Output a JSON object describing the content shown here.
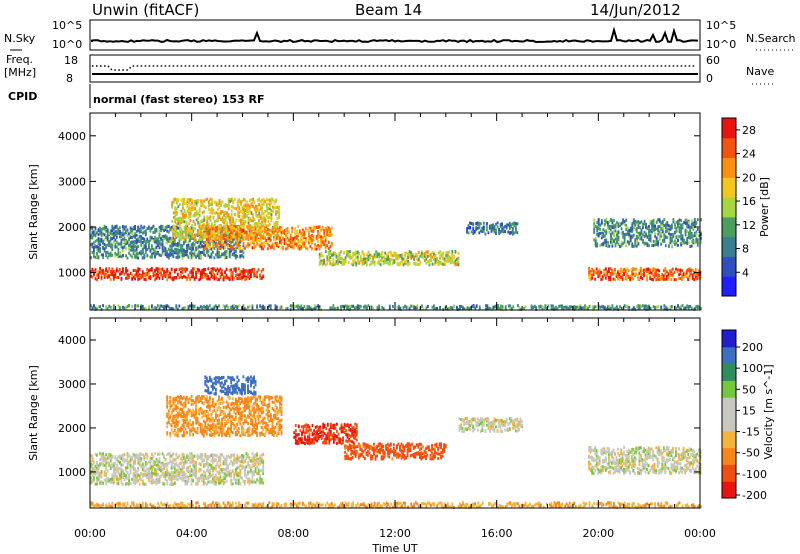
{
  "header": {
    "station": "Unwin (fitACF)",
    "beam": "Beam 14",
    "date": "14/Jun/2012"
  },
  "top_panels": {
    "nsky_label": "N.Sky",
    "nsky_ticks": [
      "10^5",
      "10^0"
    ],
    "nsearch_label": "N.Search",
    "nsearch_ticks": [
      "10^5",
      "10^0"
    ],
    "freq_label_1": "Freq.",
    "freq_label_2": "[MHz]",
    "freq_ticks": [
      "18",
      "8"
    ],
    "nave_label": "Nave",
    "nave_ticks": [
      "60",
      "0"
    ],
    "cpid_label": "CPID",
    "cpid_text": "normal (fast stereo) 153 RF"
  },
  "colors": {
    "power_scale": [
      "#1f1fff",
      "#2f4fbf",
      "#3a7f8f",
      "#4a9f5f",
      "#a6d640",
      "#f2c81e",
      "#fa9010",
      "#f25410",
      "#e81410"
    ],
    "velocity_scale": [
      "#e81410",
      "#f24e12",
      "#f7861a",
      "#f5b43c",
      "#c8c8c0",
      "#c8c8c0",
      "#74c83c",
      "#2f8f5a",
      "#3f6fbf",
      "#1f1fcf"
    ]
  },
  "chart_data": [
    {
      "type": "heatmap",
      "name": "Power",
      "ylabel": "Slant Range [km]",
      "xlabel": "Time UT",
      "xlim": [
        "00:00",
        "24:00"
      ],
      "ylim": [
        180,
        4500
      ],
      "xticks": [
        "00:00",
        "04:00",
        "08:00",
        "12:00",
        "16:00",
        "20:00",
        "00:00"
      ],
      "yticks": [
        1000,
        2000,
        3000,
        4000
      ],
      "colorbar_label": "Power [dB]",
      "colorbar_range": [
        0,
        30
      ],
      "colorbar_ticks": [
        4,
        8,
        12,
        16,
        20,
        24,
        28
      ],
      "bands": [
        {
          "t_start": 0.0,
          "t_end": 6.8,
          "r_center": 1000,
          "r_width": 250,
          "value": 27
        },
        {
          "t_start": 0.0,
          "t_end": 6.0,
          "r_center": 1700,
          "r_width": 700,
          "value": 9
        },
        {
          "t_start": 3.2,
          "t_end": 7.4,
          "r_center": 2200,
          "r_width": 900,
          "value": 18
        },
        {
          "t_start": 4.5,
          "t_end": 9.5,
          "r_center": 1800,
          "r_width": 500,
          "value": 22
        },
        {
          "t_start": 9.0,
          "t_end": 14.5,
          "r_center": 1350,
          "r_width": 300,
          "value": 16
        },
        {
          "t_start": 14.8,
          "t_end": 16.8,
          "r_center": 2000,
          "r_width": 250,
          "value": 8
        },
        {
          "t_start": 19.6,
          "t_end": 24.0,
          "r_center": 1000,
          "r_width": 250,
          "value": 24
        },
        {
          "t_start": 19.8,
          "t_end": 24.0,
          "r_center": 1900,
          "r_width": 600,
          "value": 10
        },
        {
          "t_start": 0.0,
          "t_end": 24.0,
          "r_center": 250,
          "r_width": 120,
          "value": 10
        }
      ]
    },
    {
      "type": "heatmap",
      "name": "Velocity",
      "ylabel": "Slant Range [km]",
      "xlabel": "Time UT",
      "xlim": [
        "00:00",
        "24:00"
      ],
      "ylim": [
        180,
        4500
      ],
      "xticks": [
        "00:00",
        "04:00",
        "08:00",
        "12:00",
        "16:00",
        "20:00",
        "00:00"
      ],
      "yticks": [
        1000,
        2000,
        3000,
        4000
      ],
      "colorbar_label": "Velocity [m s^-1]",
      "colorbar_ticks": [
        "200",
        "100",
        "50",
        "15",
        "-15",
        "-50",
        "-100",
        "-200"
      ],
      "bands": [
        {
          "t_start": 0.0,
          "t_end": 6.8,
          "r_center": 1100,
          "r_width": 700,
          "value": 0
        },
        {
          "t_start": 3.0,
          "t_end": 7.5,
          "r_center": 2300,
          "r_width": 900,
          "value": -60
        },
        {
          "t_start": 4.5,
          "t_end": 6.5,
          "r_center": 3000,
          "r_width": 400,
          "value": 150
        },
        {
          "t_start": 8.0,
          "t_end": 10.5,
          "r_center": 1900,
          "r_width": 450,
          "value": -200
        },
        {
          "t_start": 10.0,
          "t_end": 14.0,
          "r_center": 1500,
          "r_width": 350,
          "value": -120
        },
        {
          "t_start": 14.5,
          "t_end": 17.0,
          "r_center": 2100,
          "r_width": 300,
          "value": 0
        },
        {
          "t_start": 19.6,
          "t_end": 24.0,
          "r_center": 1300,
          "r_width": 600,
          "value": 0
        },
        {
          "t_start": 0.0,
          "t_end": 24.0,
          "r_center": 260,
          "r_width": 150,
          "value": -40
        }
      ]
    }
  ]
}
